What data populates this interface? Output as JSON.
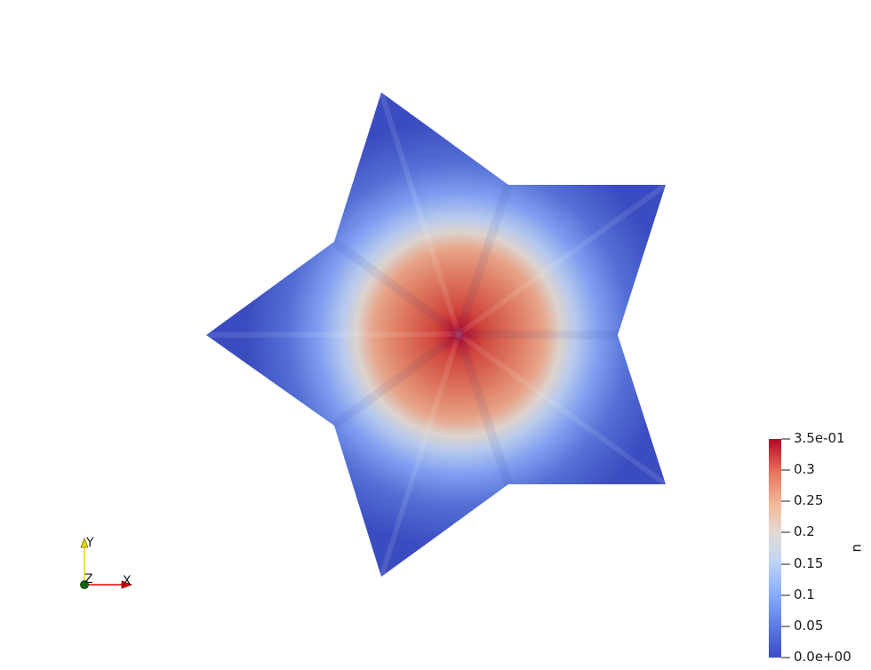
{
  "scalar_field": {
    "name": "u",
    "colormap": "cool-to-warm",
    "colors": {
      "low": "#3b4cc0",
      "mid": "#dddddd",
      "high": "#b40426"
    }
  },
  "colorbar": {
    "title": "u",
    "range": [
      0.0,
      0.35
    ],
    "ticks": [
      {
        "value": 0.35,
        "label": "3.5e-01"
      },
      {
        "value": 0.3,
        "label": "0.3"
      },
      {
        "value": 0.25,
        "label": "0.25"
      },
      {
        "value": 0.2,
        "label": "0.2"
      },
      {
        "value": 0.15,
        "label": "0.15"
      },
      {
        "value": 0.1,
        "label": "0.1"
      },
      {
        "value": 0.05,
        "label": "0.05"
      },
      {
        "value": 0.0,
        "label": "0.0e+00"
      }
    ]
  },
  "orientation_axes": {
    "x_label": "X",
    "y_label": "Y",
    "z_label": "Z",
    "x_color": "#e60000",
    "y_color": "#e6d800",
    "z_color": "#006600"
  }
}
